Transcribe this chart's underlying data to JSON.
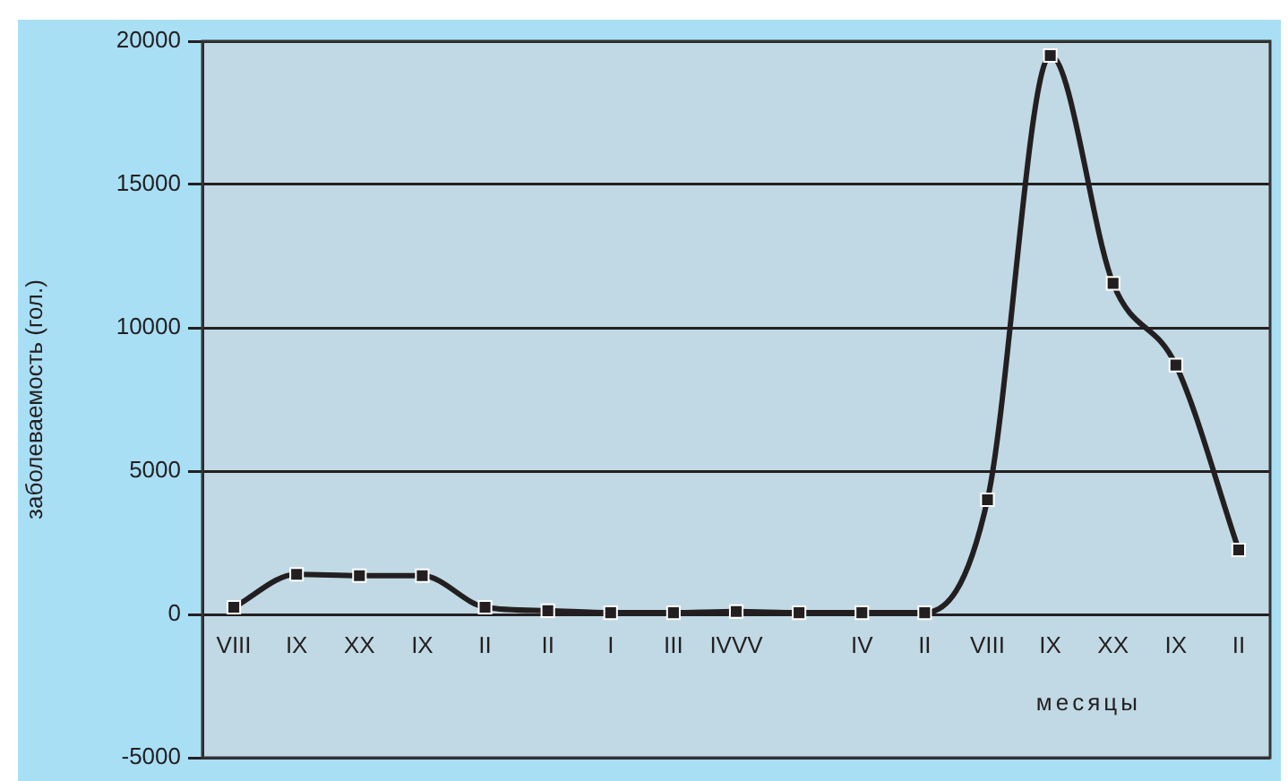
{
  "chart_data": {
    "type": "line",
    "ylabel": "заболеваемость (гол.)",
    "xlabel": "месяцы",
    "categories": [
      "VIII",
      "IX",
      "XX",
      "IX",
      "II",
      "II",
      "I",
      "III",
      "IVVV",
      null,
      "IV",
      "II",
      "VIII",
      "IX",
      "XX",
      "IX",
      "II"
    ],
    "series": [
      {
        "color": "#231f20",
        "values": [
          250,
          1400,
          1350,
          1350,
          250,
          130,
          60,
          60,
          100,
          60,
          60,
          60,
          4000,
          19500,
          11550,
          8700,
          2250
        ]
      }
    ],
    "ylim": [
      -5000,
      20000
    ],
    "yticks": [
      -5000,
      0,
      5000,
      10000,
      15000,
      20000
    ],
    "grid": "y",
    "marker": "square"
  }
}
